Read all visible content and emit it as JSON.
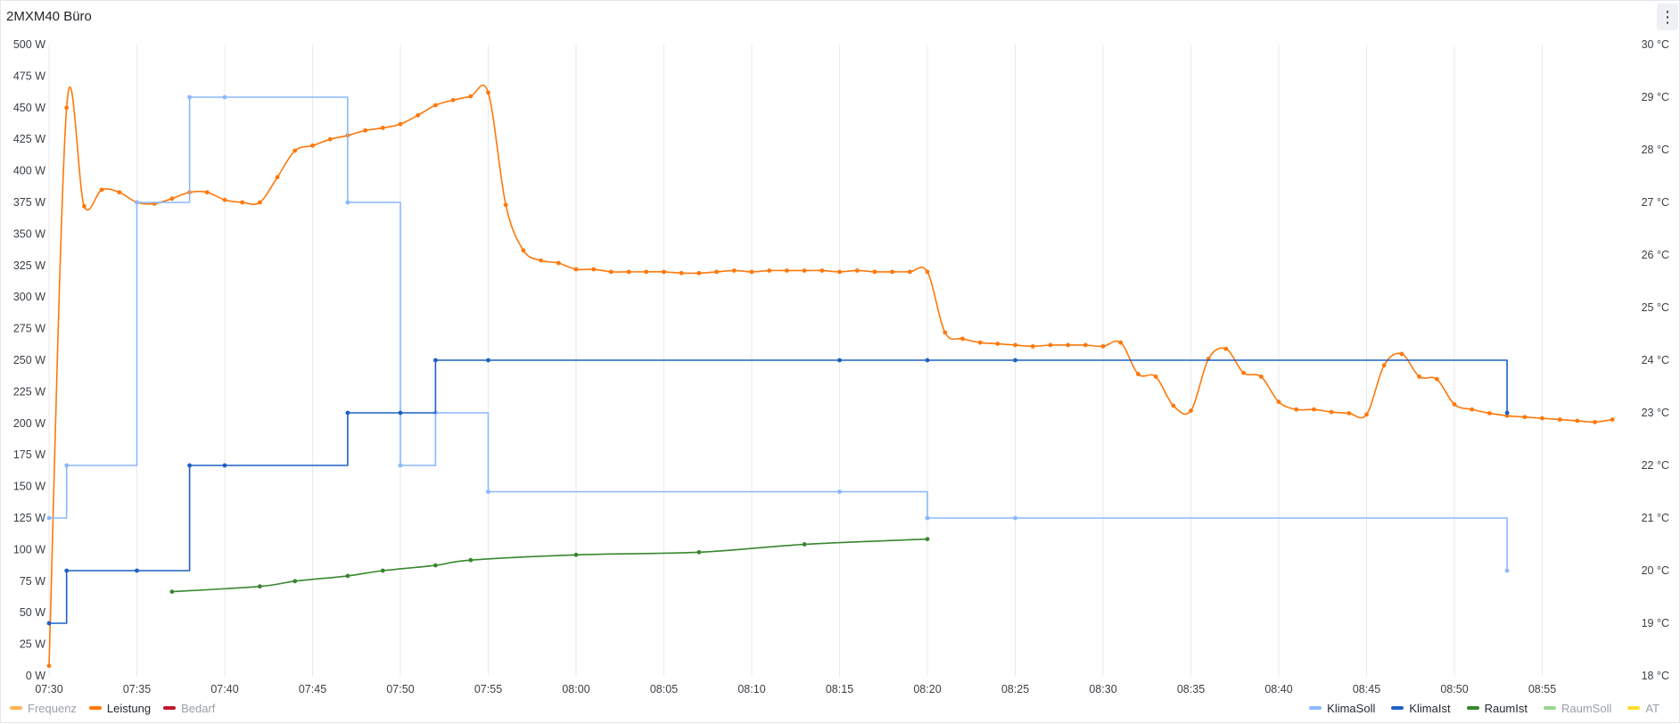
{
  "panel": {
    "title": "2MXM40 Büro",
    "menu_icon": "vertical-ellipsis-icon",
    "menu_glyph": "⋮"
  },
  "chart_data": {
    "type": "line",
    "title": "2MXM40 Büro",
    "grid": "vertical",
    "x_ticks": [
      "07:30",
      "07:35",
      "07:40",
      "07:45",
      "07:50",
      "07:55",
      "08:00",
      "08:05",
      "08:10",
      "08:15",
      "08:20",
      "08:25",
      "08:30",
      "08:35",
      "08:40",
      "08:45",
      "08:50",
      "08:55"
    ],
    "x_range": [
      "07:30",
      "08:59"
    ],
    "left_axis": {
      "unit": "W",
      "min": 0,
      "max": 500,
      "ticks": [
        "0 W",
        "25 W",
        "50 W",
        "75 W",
        "100 W",
        "125 W",
        "150 W",
        "175 W",
        "200 W",
        "225 W",
        "250 W",
        "275 W",
        "300 W",
        "325 W",
        "350 W",
        "375 W",
        "400 W",
        "425 W",
        "450 W",
        "475 W",
        "500 W"
      ]
    },
    "right_axis": {
      "unit": "°C",
      "min": 18,
      "max": 30,
      "ticks": [
        "18 °C",
        "19 °C",
        "20 °C",
        "21 °C",
        "22 °C",
        "23 °C",
        "24 °C",
        "25 °C",
        "26 °C",
        "27 °C",
        "28 °C",
        "29 °C",
        "30 °C"
      ]
    },
    "series": [
      {
        "name": "Leistung",
        "axis": "left",
        "color": "#ff780a",
        "interpolation": "smooth",
        "points": [
          [
            "07:30",
            8
          ],
          [
            "07:31",
            450
          ],
          [
            "07:32",
            372
          ],
          [
            "07:33",
            385
          ],
          [
            "07:34",
            383
          ],
          [
            "07:35",
            375
          ],
          [
            "07:36",
            374
          ],
          [
            "07:37",
            378
          ],
          [
            "07:38",
            383
          ],
          [
            "07:39",
            383
          ],
          [
            "07:40",
            377
          ],
          [
            "07:41",
            375
          ],
          [
            "07:42",
            375
          ],
          [
            "07:43",
            395
          ],
          [
            "07:44",
            416
          ],
          [
            "07:45",
            420
          ],
          [
            "07:46",
            425
          ],
          [
            "07:47",
            428
          ],
          [
            "07:48",
            432
          ],
          [
            "07:49",
            434
          ],
          [
            "07:50",
            437
          ],
          [
            "07:51",
            444
          ],
          [
            "07:52",
            452
          ],
          [
            "07:53",
            456
          ],
          [
            "07:54",
            459
          ],
          [
            "07:55",
            462
          ],
          [
            "07:56",
            373
          ],
          [
            "07:57",
            337
          ],
          [
            "07:58",
            329
          ],
          [
            "07:59",
            327
          ],
          [
            "08:00",
            322
          ],
          [
            "08:01",
            322
          ],
          [
            "08:02",
            320
          ],
          [
            "08:03",
            320
          ],
          [
            "08:04",
            320
          ],
          [
            "08:05",
            320
          ],
          [
            "08:06",
            319
          ],
          [
            "08:07",
            319
          ],
          [
            "08:08",
            320
          ],
          [
            "08:09",
            321
          ],
          [
            "08:10",
            320
          ],
          [
            "08:11",
            321
          ],
          [
            "08:12",
            321
          ],
          [
            "08:13",
            321
          ],
          [
            "08:14",
            321
          ],
          [
            "08:15",
            320
          ],
          [
            "08:16",
            321
          ],
          [
            "08:17",
            320
          ],
          [
            "08:18",
            320
          ],
          [
            "08:19",
            320
          ],
          [
            "08:20",
            320
          ],
          [
            "08:21",
            272
          ],
          [
            "08:22",
            267
          ],
          [
            "08:23",
            264
          ],
          [
            "08:24",
            263
          ],
          [
            "08:25",
            262
          ],
          [
            "08:26",
            261
          ],
          [
            "08:27",
            262
          ],
          [
            "08:28",
            262
          ],
          [
            "08:29",
            262
          ],
          [
            "08:30",
            261
          ],
          [
            "08:31",
            264
          ],
          [
            "08:32",
            239
          ],
          [
            "08:33",
            237
          ],
          [
            "08:34",
            214
          ],
          [
            "08:35",
            210
          ],
          [
            "08:36",
            251
          ],
          [
            "08:37",
            259
          ],
          [
            "08:38",
            240
          ],
          [
            "08:39",
            237
          ],
          [
            "08:40",
            217
          ],
          [
            "08:41",
            211
          ],
          [
            "08:42",
            211
          ],
          [
            "08:43",
            209
          ],
          [
            "08:44",
            208
          ],
          [
            "08:45",
            207
          ],
          [
            "08:46",
            246
          ],
          [
            "08:47",
            255
          ],
          [
            "08:48",
            237
          ],
          [
            "08:49",
            235
          ],
          [
            "08:50",
            215
          ],
          [
            "08:51",
            211
          ],
          [
            "08:52",
            208
          ],
          [
            "08:53",
            206
          ],
          [
            "08:54",
            205
          ],
          [
            "08:55",
            204
          ],
          [
            "08:56",
            203
          ],
          [
            "08:57",
            202
          ],
          [
            "08:58",
            201
          ],
          [
            "08:59",
            203
          ]
        ]
      },
      {
        "name": "KlimaSoll",
        "axis": "right",
        "color": "#8ab8ff",
        "interpolation": "step",
        "points": [
          [
            "07:30",
            21.0
          ],
          [
            "07:31",
            22.0
          ],
          [
            "07:35",
            27.0
          ],
          [
            "07:38",
            29.0
          ],
          [
            "07:40",
            29.0
          ],
          [
            "07:47",
            27.0
          ],
          [
            "07:50",
            22.0
          ],
          [
            "07:52",
            23.0
          ],
          [
            "07:55",
            21.5
          ],
          [
            "08:15",
            21.5
          ],
          [
            "08:20",
            21.0
          ],
          [
            "08:25",
            21.0
          ],
          [
            "08:53",
            20.0
          ]
        ]
      },
      {
        "name": "KlimaIst",
        "axis": "right",
        "color": "#1f60c4",
        "interpolation": "step",
        "points": [
          [
            "07:30",
            19.0
          ],
          [
            "07:31",
            20.0
          ],
          [
            "07:35",
            20.0
          ],
          [
            "07:38",
            22.0
          ],
          [
            "07:40",
            22.0
          ],
          [
            "07:47",
            23.0
          ],
          [
            "07:50",
            23.0
          ],
          [
            "07:52",
            24.0
          ],
          [
            "07:55",
            24.0
          ],
          [
            "08:15",
            24.0
          ],
          [
            "08:20",
            24.0
          ],
          [
            "08:25",
            24.0
          ],
          [
            "08:53",
            23.0
          ]
        ]
      },
      {
        "name": "RaumIst",
        "axis": "right",
        "color": "#37872d",
        "interpolation": "smooth",
        "points": [
          [
            "07:37",
            19.6
          ],
          [
            "07:42",
            19.7
          ],
          [
            "07:44",
            19.8
          ],
          [
            "07:47",
            19.9
          ],
          [
            "07:49",
            20.0
          ],
          [
            "07:52",
            20.1
          ],
          [
            "07:54",
            20.2
          ],
          [
            "08:00",
            20.3
          ],
          [
            "08:07",
            20.35
          ],
          [
            "08:13",
            20.5
          ],
          [
            "08:20",
            20.6
          ]
        ]
      }
    ],
    "legend_left": [
      {
        "name": "Frequenz",
        "color": "#ffb357",
        "hidden": true
      },
      {
        "name": "Leistung",
        "color": "#ff780a",
        "hidden": false
      },
      {
        "name": "Bedarf",
        "color": "#c4162a",
        "hidden": true
      }
    ],
    "legend_right": [
      {
        "name": "KlimaSoll",
        "color": "#8ab8ff",
        "hidden": false
      },
      {
        "name": "KlimaIst",
        "color": "#1f60c4",
        "hidden": false
      },
      {
        "name": "RaumIst",
        "color": "#37872d",
        "hidden": false
      },
      {
        "name": "RaumSoll",
        "color": "#96d98d",
        "hidden": true
      },
      {
        "name": "AT",
        "color": "#fade2a",
        "hidden": true
      }
    ]
  }
}
